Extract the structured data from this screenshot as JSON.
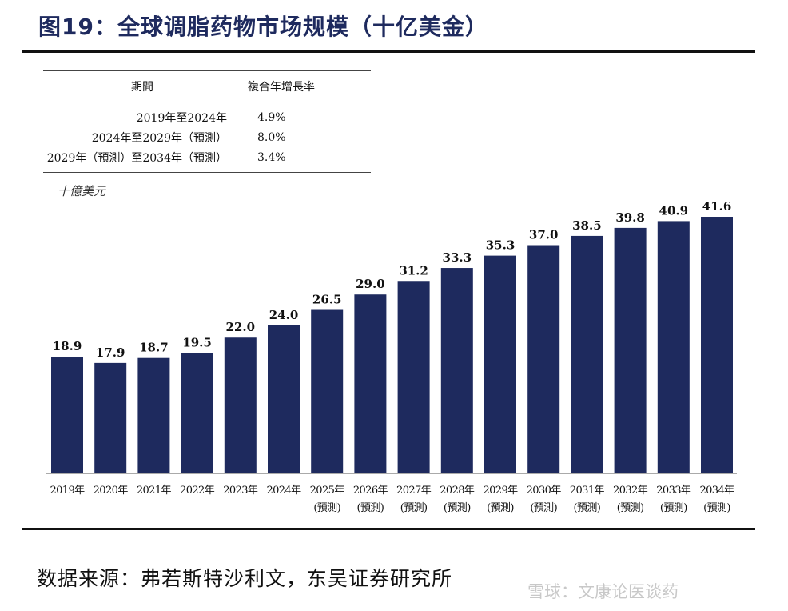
{
  "figure": {
    "title": "图19：全球调脂药物市场规模（十亿美金）",
    "source": "数据来源：弗若斯特沙利文，东吴证券研究所",
    "watermark": "雪球：文康论医谈药"
  },
  "cagr_table": {
    "headers": [
      "期間",
      "複合年增長率"
    ],
    "rows": [
      {
        "period": "2019年至2024年",
        "rate": "4.9%"
      },
      {
        "period": "2024年至2029年（預測）",
        "rate": "8.0%"
      },
      {
        "period": "2029年（預測）至2034年（預測）",
        "rate": "3.4%"
      }
    ]
  },
  "chart_data": {
    "type": "bar",
    "unit_label": "十億美元",
    "categories": [
      "2019年",
      "2020年",
      "2021年",
      "2022年",
      "2023年",
      "2024年",
      "2025年",
      "2026年",
      "2027年",
      "2028年",
      "2029年",
      "2030年",
      "2031年",
      "2032年",
      "2033年",
      "2034年"
    ],
    "sub_labels": [
      "",
      "",
      "",
      "",
      "",
      "",
      "(預測)",
      "(預測)",
      "(預測)",
      "(預測)",
      "(預測)",
      "(預測)",
      "(預測)",
      "(預測)",
      "(預測)",
      "(預測)"
    ],
    "values": [
      18.9,
      17.9,
      18.7,
      19.5,
      22.0,
      24.0,
      26.5,
      29.0,
      31.2,
      33.3,
      35.3,
      37.0,
      38.5,
      39.8,
      40.9,
      41.6
    ],
    "value_labels": [
      "18.9",
      "17.9",
      "18.7",
      "19.5",
      "22.0",
      "24.0",
      "26.5",
      "29.0",
      "31.2",
      "33.3",
      "35.3",
      "37.0",
      "38.5",
      "39.8",
      "40.9",
      "41.6"
    ],
    "bar_color": "#1e2a5e",
    "ylim": [
      0,
      41.6
    ],
    "grid": false,
    "legend": "none"
  }
}
